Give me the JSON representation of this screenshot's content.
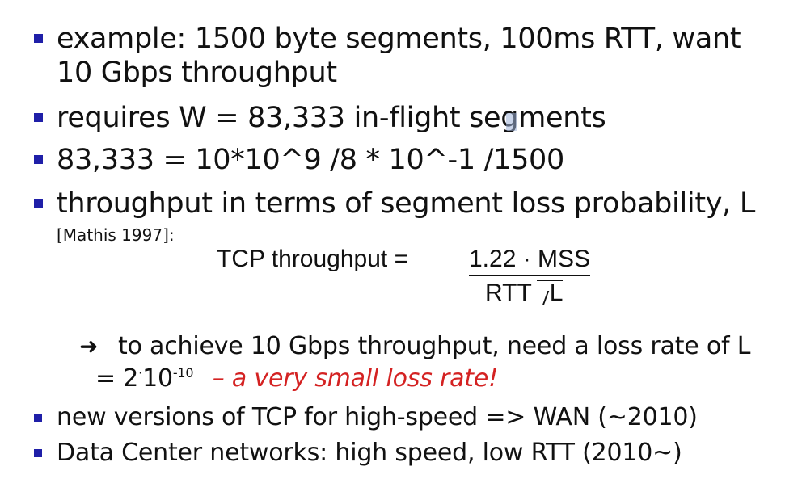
{
  "bullets": [
    {
      "lines": [
        "example: 1500 byte segments, 100ms RTT, want",
        "10 Gbps throughput"
      ]
    },
    {
      "lines": [
        "requires W = 83,333 in-flight segments"
      ]
    },
    {
      "lines": [
        "83,333 = 10*10^9 /8 * 10^-1 /1500"
      ]
    },
    {
      "lines": [
        "throughput in terms of segment loss probability, L"
      ]
    },
    {
      "lines": [
        "new versions of TCP for high-speed => WAN (~2010)"
      ]
    },
    {
      "lines": [
        "Data Center networks: high speed, low RTT (2010~)"
      ]
    }
  ],
  "citation": "[Mathis 1997]:",
  "formula": {
    "label": "TCP throughput =",
    "numerator": "1.22 · MSS",
    "denominator_rtt": "RTT",
    "denominator_root": "L"
  },
  "sub_point": {
    "arrow": "➜",
    "line1": "to achieve 10 Gbps throughput, need a loss rate of L",
    "eq_prefix": "= 2",
    "eq_dot": "·",
    "eq_base": "10",
    "eq_exp": "-10",
    "emphasis": "– a very small loss rate!"
  },
  "colors": {
    "bullet": "#1f1fa8",
    "emphasis": "#d42222"
  }
}
